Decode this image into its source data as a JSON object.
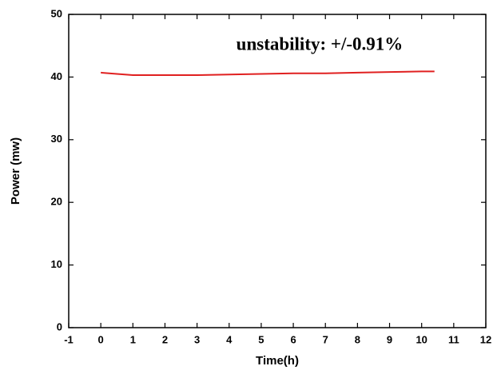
{
  "chart_data": {
    "type": "line",
    "xlabel": "Time(h)",
    "ylabel": "Power (mw)",
    "annotation": "unstability: +/-0.91%",
    "x": [
      0,
      0.5,
      1,
      2,
      3,
      4,
      5,
      6,
      7,
      8,
      9,
      10,
      10.4
    ],
    "series": [
      {
        "name": "Power",
        "color": "#e02020",
        "values": [
          40.7,
          40.5,
          40.3,
          40.3,
          40.3,
          40.4,
          40.5,
          40.6,
          40.6,
          40.7,
          40.8,
          40.9,
          40.9
        ]
      }
    ],
    "xlim": [
      -1,
      12
    ],
    "xticks": [
      -1,
      0,
      1,
      2,
      3,
      4,
      5,
      6,
      7,
      8,
      9,
      10,
      11,
      12
    ],
    "ylim": [
      0,
      50
    ],
    "yticks": [
      0,
      10,
      20,
      30,
      40,
      50
    ]
  }
}
